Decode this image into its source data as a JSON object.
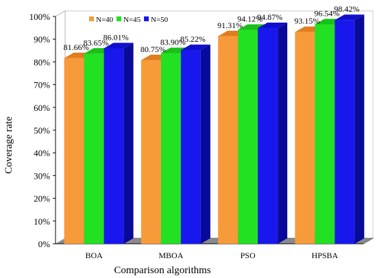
{
  "chart_data": {
    "type": "bar",
    "style": "3d-clustered",
    "xlabel": "Comparison algorithms",
    "ylabel": "Coverage rate",
    "categories": [
      "BOA",
      "MBOA",
      "PSO",
      "HPSBA"
    ],
    "ylim": [
      0,
      100
    ],
    "yticks": [
      "0%",
      "10%",
      "20%",
      "30%",
      "40%",
      "50%",
      "60%",
      "70%",
      "80%",
      "90%",
      "100%"
    ],
    "series": [
      {
        "name": "N=40",
        "color": "#f79a3a",
        "side_color": "#c9701b",
        "top_color": "#e07d1e",
        "values": [
          81.66,
          80.75,
          91.31,
          93.15
        ],
        "labels": [
          "81.66%",
          "80.75%",
          "91.31%",
          "93.15%"
        ]
      },
      {
        "name": "N=45",
        "color": "#22e022",
        "side_color": "#0f9a0f",
        "top_color": "#19c019",
        "values": [
          83.65,
          83.9,
          94.12,
          96.54
        ],
        "labels": [
          "83.65%",
          "83.90%",
          "94.12%",
          "96.54%"
        ]
      },
      {
        "name": "N=50",
        "color": "#1818ee",
        "side_color": "#0a0a9a",
        "top_color": "#1010cc",
        "values": [
          86.01,
          85.22,
          94.87,
          98.42
        ],
        "labels": [
          "86.01%",
          "85.22%",
          "94.87%",
          "98.42%"
        ]
      }
    ],
    "legend_position": "top-left",
    "grid": false
  }
}
